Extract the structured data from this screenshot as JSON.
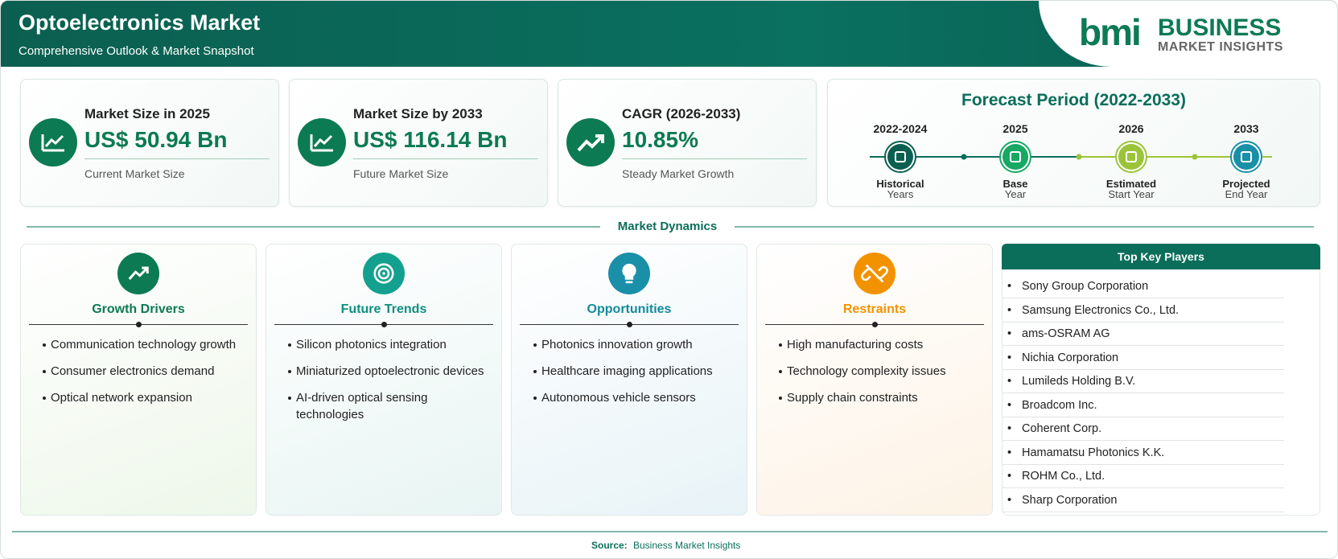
{
  "header": {
    "title": "Optoelectronics Market",
    "subtitle": "Comprehensive Outlook & Market Snapshot",
    "logo": {
      "mark": "bmi",
      "name": "BUSINESS",
      "tagline": "MARKET INSIGHTS"
    }
  },
  "kpis": [
    {
      "label": "Market Size in 2025",
      "value": "US$ 50.94 Bn",
      "note": "Current Market Size"
    },
    {
      "label": "Market Size by 2033",
      "value": "US$ 116.14 Bn",
      "note": "Future Market Size"
    },
    {
      "label": "CAGR (2026-2033)",
      "value": "10.85%",
      "note": "Steady Market Growth"
    }
  ],
  "forecast": {
    "title": "Forecast Period (2022-2033)",
    "stages": [
      {
        "period": "2022-2024",
        "label": "Historical",
        "sublabel": "Years"
      },
      {
        "period": "2025",
        "label": "Base",
        "sublabel": "Year"
      },
      {
        "period": "2026",
        "label": "Estimated",
        "sublabel": "Start Year"
      },
      {
        "period": "2033",
        "label": "Projected",
        "sublabel": "End Year"
      }
    ]
  },
  "dynamics": {
    "title": "Market Dynamics",
    "panels": [
      {
        "title": "Growth Drivers",
        "items": [
          "Communication technology growth",
          "Consumer electronics demand",
          "Optical network expansion"
        ]
      },
      {
        "title": "Future Trends",
        "items": [
          "Silicon photonics integration",
          "Miniaturized optoelectronic devices",
          "AI-driven optical sensing technologies"
        ]
      },
      {
        "title": "Opportunities",
        "items": [
          "Photonics innovation growth",
          "Healthcare imaging applications",
          "Autonomous vehicle sensors"
        ]
      },
      {
        "title": "Restraints",
        "items": [
          "High manufacturing costs",
          "Technology complexity issues",
          "Supply chain constraints"
        ]
      }
    ]
  },
  "key_players": {
    "title": "Top Key Players",
    "items": [
      "Sony Group Corporation",
      "Samsung Electronics Co., Ltd.",
      "ams-OSRAM AG",
      "Nichia Corporation",
      "Lumileds Holding B.V.",
      "Broadcom Inc.",
      "Coherent Corp.",
      "Hamamatsu Photonics K.K.",
      "ROHM Co., Ltd.",
      "Sharp Corporation"
    ]
  },
  "source": {
    "label": "Source:",
    "text": "Business Market Insights"
  }
}
